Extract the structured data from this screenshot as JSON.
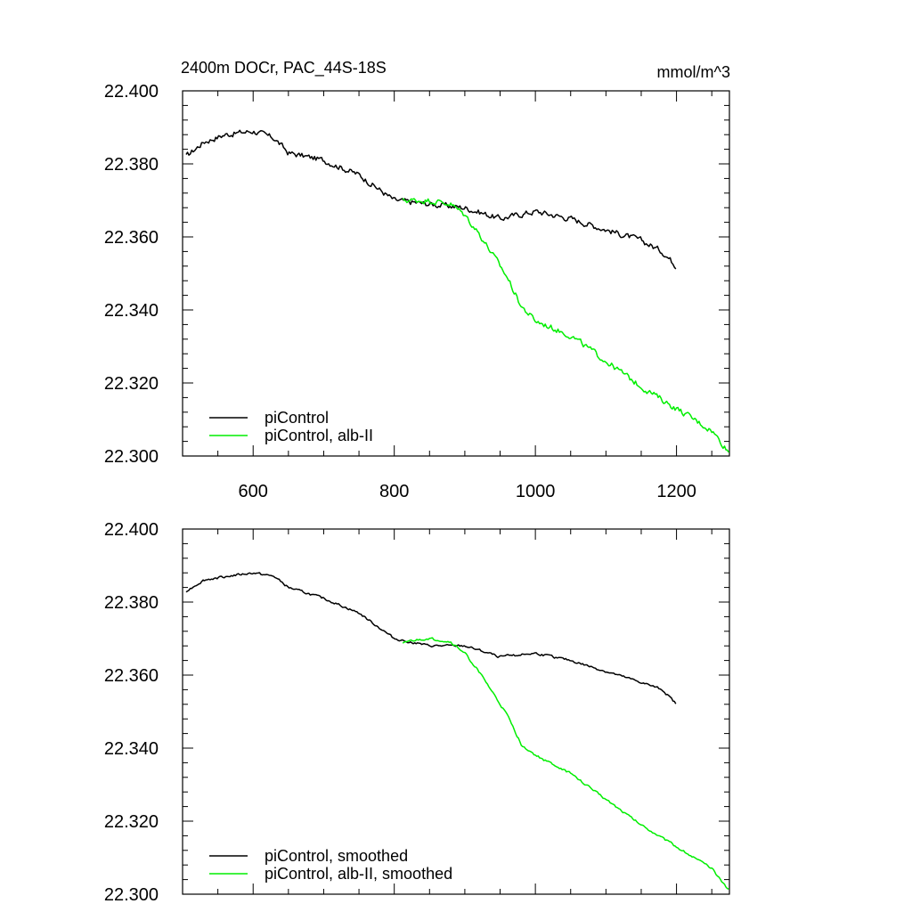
{
  "chart_data": [
    {
      "type": "line",
      "title_left": "2400m DOCr, PAC_44S-18S",
      "title_right": "mmol/m^3",
      "xlim": [
        500,
        1275
      ],
      "ylim": [
        22.3,
        22.4
      ],
      "yticks": [
        "22.300",
        "22.320",
        "22.340",
        "22.360",
        "22.380",
        "22.400"
      ],
      "xticks": [
        "600",
        "800",
        "1000",
        "1200"
      ],
      "grid": false,
      "legend_position": "bottom-left",
      "series": [
        {
          "name": "piControl",
          "color": "#000000",
          "x_range": [
            505,
            1200
          ],
          "anchors": [
            [
              505,
              22.382
            ],
            [
              530,
              22.386
            ],
            [
              560,
              22.388
            ],
            [
              600,
              22.389
            ],
            [
              630,
              22.387
            ],
            [
              650,
              22.383
            ],
            [
              700,
              22.381
            ],
            [
              750,
              22.377
            ],
            [
              800,
              22.37
            ],
            [
              850,
              22.369
            ],
            [
              900,
              22.368
            ],
            [
              950,
              22.365
            ],
            [
              1000,
              22.367
            ],
            [
              1050,
              22.365
            ],
            [
              1100,
              22.362
            ],
            [
              1150,
              22.359
            ],
            [
              1180,
              22.356
            ],
            [
              1200,
              22.352
            ]
          ],
          "noise": 0.0013
        },
        {
          "name": "piControl, alb-II",
          "color": "#00ee00",
          "x_range": [
            812,
            1275
          ],
          "anchors": [
            [
              812,
              22.37
            ],
            [
              850,
              22.37
            ],
            [
              880,
              22.369
            ],
            [
              900,
              22.366
            ],
            [
              920,
              22.361
            ],
            [
              940,
              22.355
            ],
            [
              960,
              22.349
            ],
            [
              980,
              22.341
            ],
            [
              1000,
              22.337
            ],
            [
              1050,
              22.333
            ],
            [
              1100,
              22.326
            ],
            [
              1150,
              22.319
            ],
            [
              1200,
              22.313
            ],
            [
              1250,
              22.307
            ],
            [
              1275,
              22.301
            ]
          ],
          "noise": 0.0013
        }
      ]
    },
    {
      "type": "line",
      "xlim": [
        500,
        1275
      ],
      "ylim": [
        22.3,
        22.4
      ],
      "yticks": [
        "22.300",
        "22.320",
        "22.340",
        "22.360",
        "22.380",
        "22.400"
      ],
      "xticks": [
        "",
        "",
        "",
        ""
      ],
      "grid": false,
      "legend_position": "bottom-left",
      "series": [
        {
          "name": "piControl, smoothed",
          "color": "#000000",
          "x_range": [
            505,
            1200
          ],
          "anchors": [
            [
              505,
              22.383
            ],
            [
              530,
              22.386
            ],
            [
              560,
              22.387
            ],
            [
              600,
              22.388
            ],
            [
              630,
              22.387
            ],
            [
              650,
              22.384
            ],
            [
              700,
              22.381
            ],
            [
              750,
              22.377
            ],
            [
              800,
              22.37
            ],
            [
              850,
              22.368
            ],
            [
              900,
              22.368
            ],
            [
              950,
              22.365
            ],
            [
              1000,
              22.366
            ],
            [
              1050,
              22.364
            ],
            [
              1100,
              22.361
            ],
            [
              1150,
              22.358
            ],
            [
              1180,
              22.356
            ],
            [
              1200,
              22.352
            ]
          ],
          "noise": 0.0005
        },
        {
          "name": "piControl, alb-II, smoothed",
          "color": "#00ee00",
          "x_range": [
            812,
            1275
          ],
          "anchors": [
            [
              812,
              22.369
            ],
            [
              850,
              22.37
            ],
            [
              880,
              22.369
            ],
            [
              900,
              22.366
            ],
            [
              920,
              22.361
            ],
            [
              940,
              22.355
            ],
            [
              960,
              22.349
            ],
            [
              980,
              22.341
            ],
            [
              1000,
              22.338
            ],
            [
              1050,
              22.333
            ],
            [
              1100,
              22.326
            ],
            [
              1150,
              22.319
            ],
            [
              1200,
              22.313
            ],
            [
              1250,
              22.307
            ],
            [
              1275,
              22.301
            ]
          ],
          "noise": 0.0005
        }
      ]
    }
  ]
}
